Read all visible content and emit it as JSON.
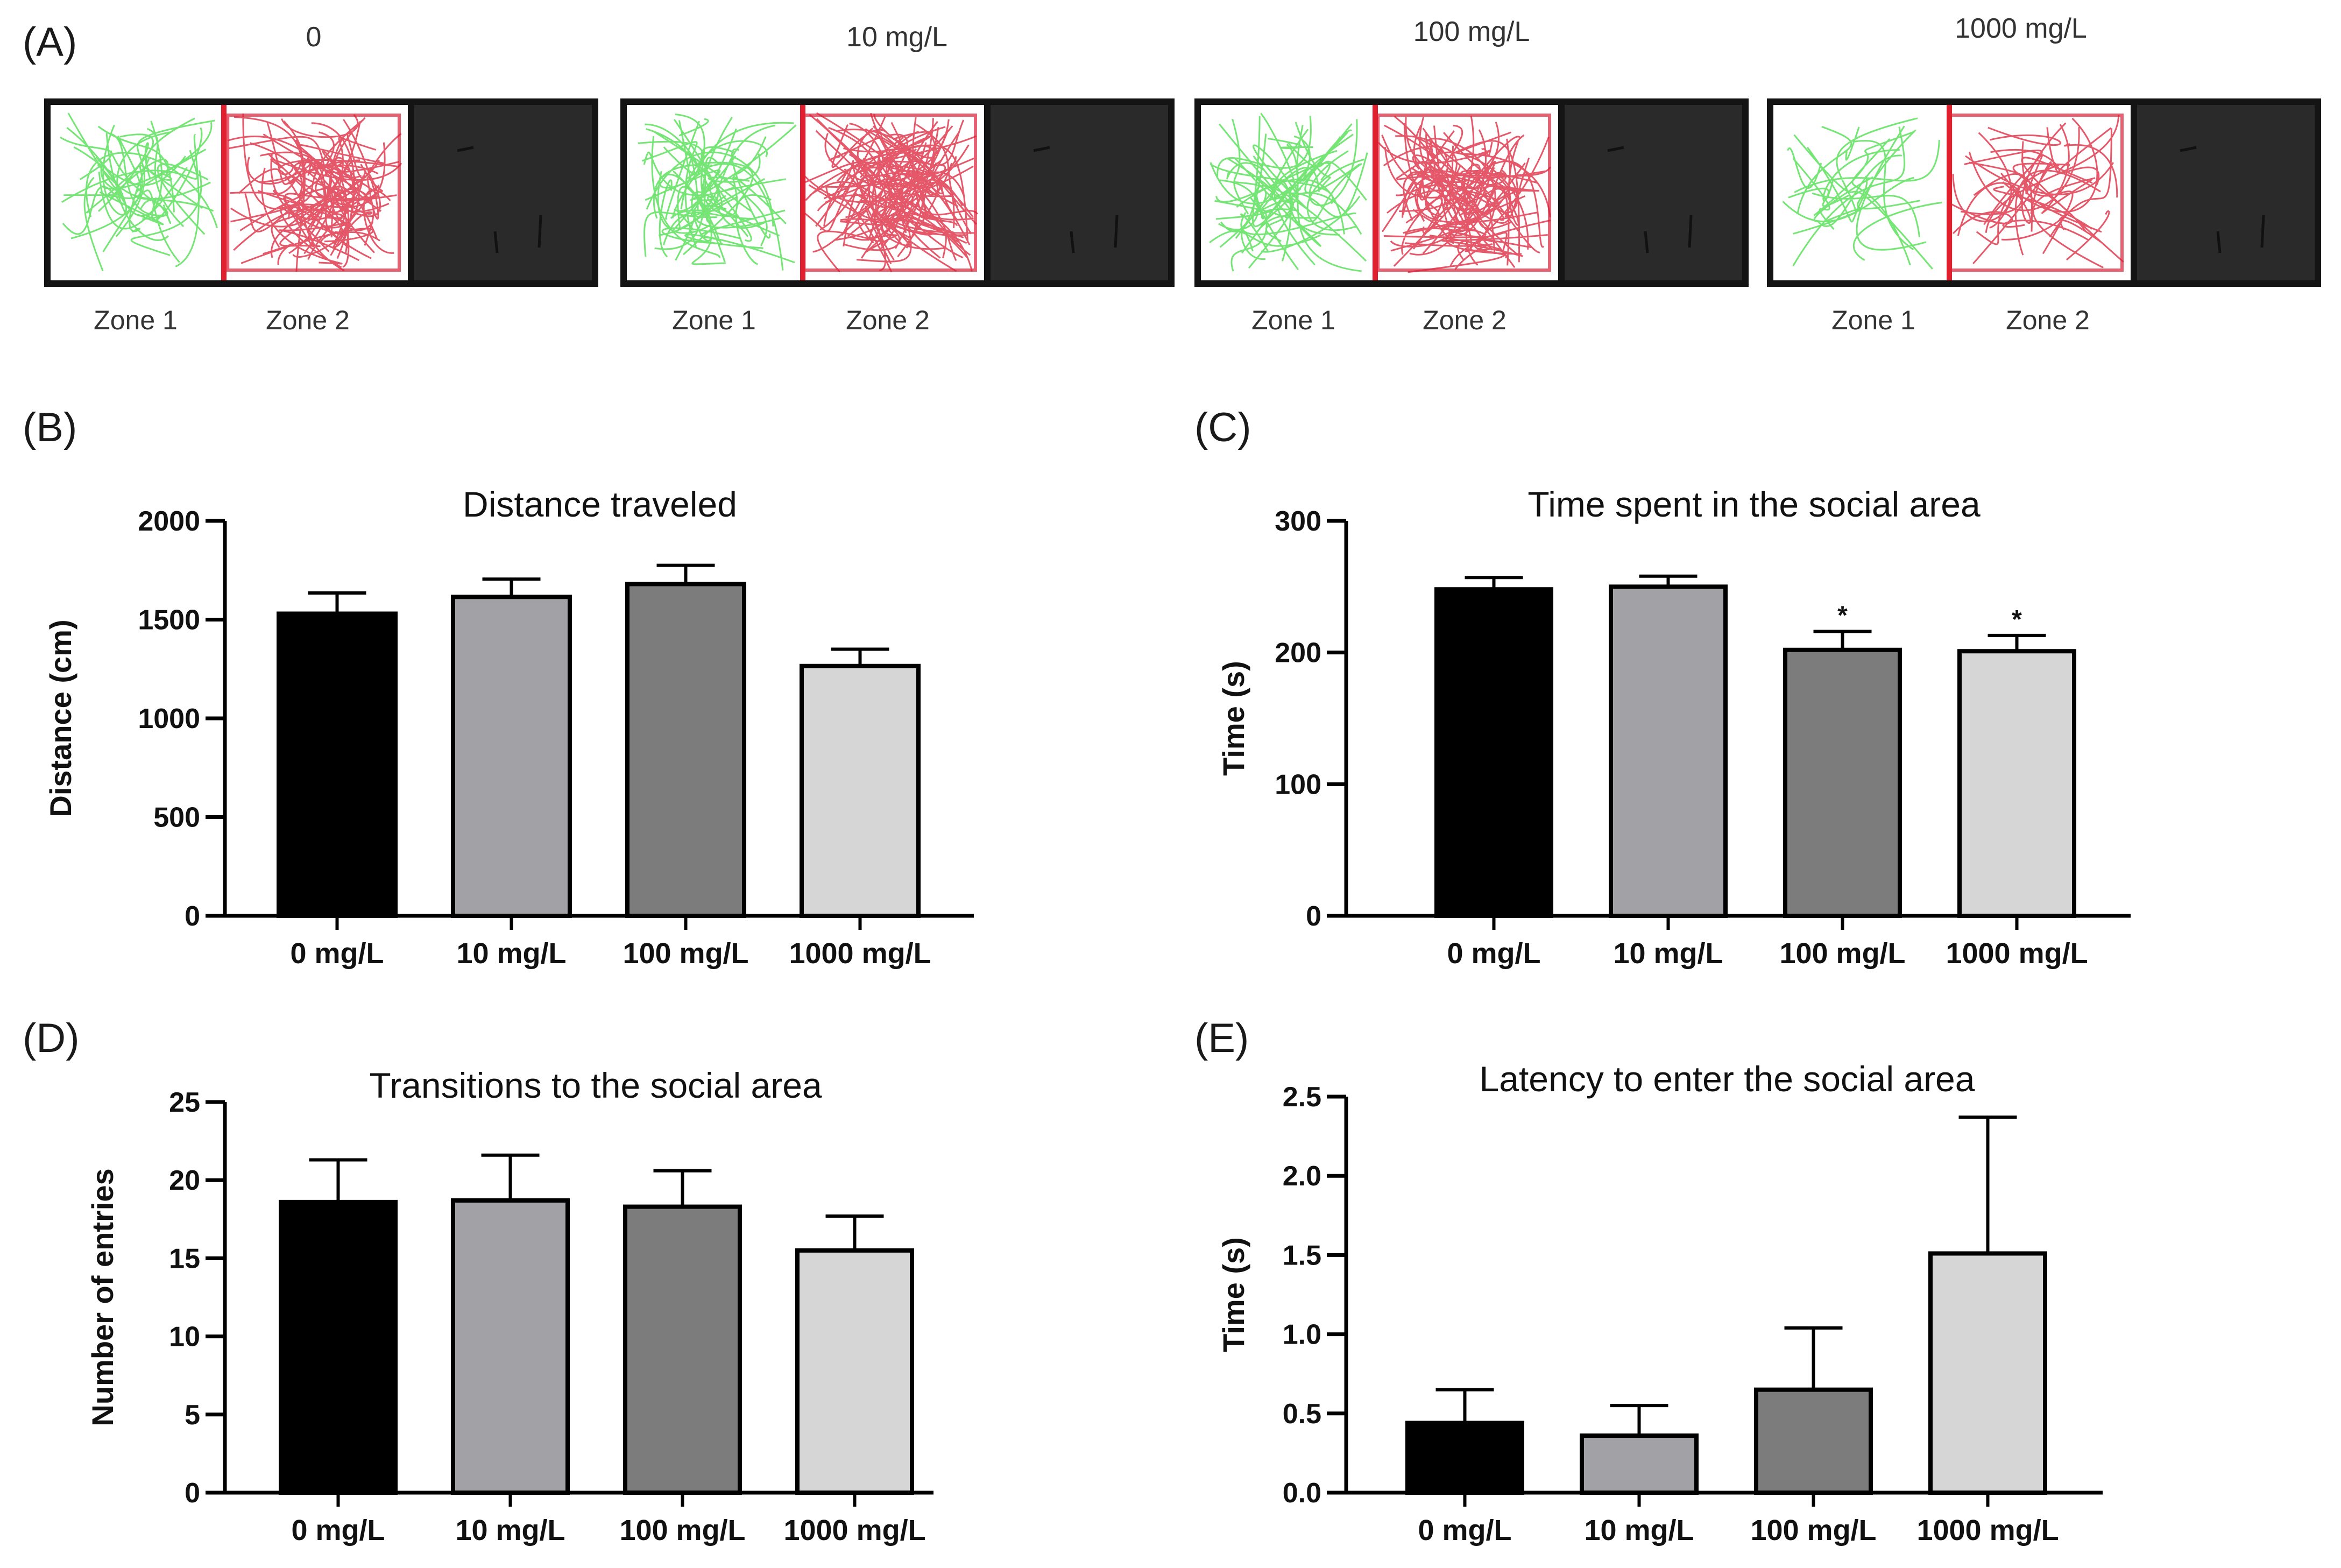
{
  "panel_a": {
    "label": "(A)",
    "conditions": [
      {
        "title": "0",
        "zone1": "Zone 1",
        "zone2": "Zone 2"
      },
      {
        "title": "10 mg/L",
        "zone1": "Zone 1",
        "zone2": "Zone 2"
      },
      {
        "title": "100 mg/L",
        "zone1": "Zone 1",
        "zone2": "Zone 2"
      },
      {
        "title": "1000 mg/L",
        "zone1": "Zone 1",
        "zone2": "Zone 2"
      }
    ],
    "colors": {
      "zone1_track": "#5de05d",
      "zone2_track": "#dc2038",
      "divider": "#e0202e",
      "social_zone": "#262626"
    }
  },
  "colors": {
    "bar_fills": [
      "#000000",
      "#a2a2a6",
      "#7c7c7c",
      "#d6d6d6"
    ],
    "axis": "#000000"
  },
  "chart_data": [
    {
      "id": "B",
      "panel_label": "(B)",
      "type": "bar",
      "title": "Distance traveled",
      "xlabel": "",
      "ylabel": "Distance (cm)",
      "categories": [
        "0  mg/L",
        "10 mg/L",
        "100 mg/L",
        "1000 mg/L"
      ],
      "values": [
        1530,
        1615,
        1680,
        1265
      ],
      "errors": [
        105,
        90,
        95,
        85
      ],
      "significance": [
        "",
        "",
        "",
        ""
      ],
      "ylim": [
        0,
        2000
      ],
      "yticks": [
        0,
        500,
        1000,
        1500,
        2000
      ],
      "ytick_labels": [
        "0",
        "500",
        "1000",
        "1500",
        "2000"
      ]
    },
    {
      "id": "C",
      "panel_label": "(C)",
      "type": "bar",
      "title": "Time spent in the social area",
      "xlabel": "",
      "ylabel": "Time (s)",
      "categories": [
        "0  mg/L",
        "10 mg/L",
        "100 mg/L",
        "1000 mg/L"
      ],
      "values": [
        248,
        250,
        202,
        201
      ],
      "errors": [
        9,
        8,
        14,
        12
      ],
      "significance": [
        "",
        "",
        "*",
        "*"
      ],
      "ylim": [
        0,
        300
      ],
      "yticks": [
        0,
        100,
        200,
        300
      ],
      "ytick_labels": [
        "0",
        "100",
        "200",
        "300"
      ]
    },
    {
      "id": "D",
      "panel_label": "(D)",
      "type": "bar",
      "title": "Transitions to the social area",
      "xlabel": "",
      "ylabel": "Number of entries",
      "categories": [
        "0  mg/L",
        "10 mg/L",
        "100 mg/L",
        "1000 mg/L"
      ],
      "values": [
        18.6,
        18.7,
        18.3,
        15.5
      ],
      "errors": [
        2.7,
        2.9,
        2.3,
        2.2
      ],
      "significance": [
        "",
        "",
        "",
        ""
      ],
      "ylim": [
        0,
        25
      ],
      "yticks": [
        0,
        5,
        10,
        15,
        20,
        25
      ],
      "ytick_labels": [
        "0",
        "5",
        "10",
        "15",
        "20",
        "25"
      ]
    },
    {
      "id": "E",
      "panel_label": "(E)",
      "type": "bar",
      "title": "Latency to enter the social area",
      "xlabel": "",
      "ylabel": "Time (s)",
      "categories": [
        "0  mg/L",
        "10 mg/L",
        "100 mg/L",
        "1000 mg/L"
      ],
      "values": [
        0.44,
        0.36,
        0.65,
        1.51
      ],
      "errors": [
        0.21,
        0.19,
        0.39,
        0.86
      ],
      "significance": [
        "",
        "",
        "",
        ""
      ],
      "ylim": [
        0,
        2.5
      ],
      "yticks": [
        0,
        0.5,
        1.0,
        1.5,
        2.0,
        2.5
      ],
      "ytick_labels": [
        "0.0",
        "0.5",
        "1.0",
        "1.5",
        "2.0",
        "2.5"
      ]
    }
  ]
}
